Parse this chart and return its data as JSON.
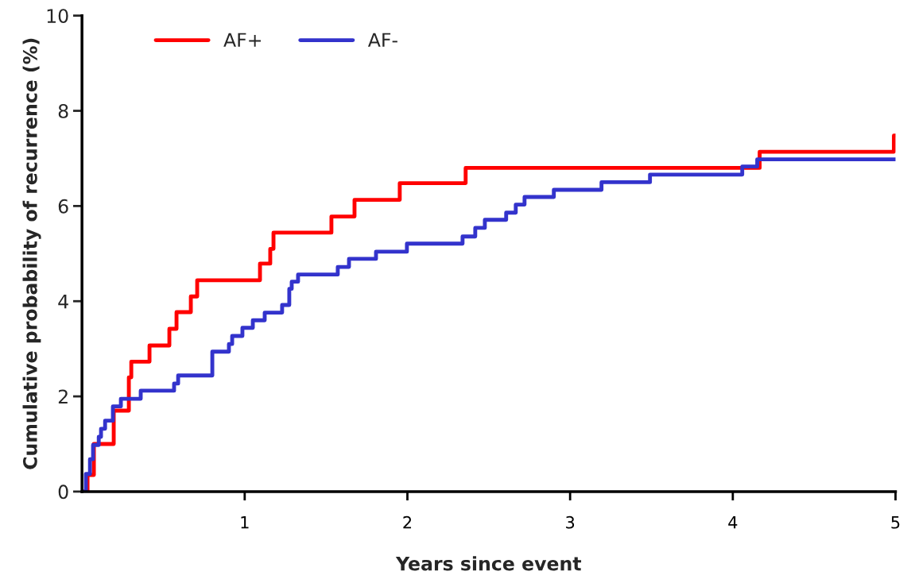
{
  "chart_data": {
    "type": "step",
    "xlabel": "Years since event",
    "ylabel": "Cumulative probability of recurrence (%)",
    "series": [
      {
        "name": "AF+",
        "color": "#ff0000",
        "x": [
          0,
          0.034,
          0.073,
          0.195,
          0.288,
          0.303,
          0.415,
          0.537,
          0.581,
          0.669,
          0.708,
          1.094,
          1.157,
          1.177,
          1.533,
          1.675,
          1.953,
          2.358,
          4.165,
          4.99,
          5.0
        ],
        "values": [
          0,
          0.35,
          1.0,
          1.7,
          2.4,
          2.73,
          3.07,
          3.42,
          3.77,
          4.1,
          4.44,
          4.79,
          5.1,
          5.44,
          5.78,
          6.13,
          6.48,
          6.8,
          7.14,
          7.48,
          7.48
        ]
      },
      {
        "name": "AF-",
        "color": "#3333cc",
        "x": [
          0,
          0.024,
          0.049,
          0.068,
          0.103,
          0.117,
          0.142,
          0.19,
          0.239,
          0.361,
          0.566,
          0.591,
          0.801,
          0.903,
          0.923,
          0.986,
          1.05,
          1.123,
          1.23,
          1.274,
          1.289,
          1.328,
          1.572,
          1.641,
          1.807,
          1.997,
          2.339,
          2.417,
          2.476,
          2.607,
          2.666,
          2.72,
          2.9,
          3.193,
          3.491,
          4.058,
          4.15,
          5.0
        ],
        "values": [
          0,
          0.37,
          0.68,
          0.98,
          1.15,
          1.32,
          1.49,
          1.79,
          1.95,
          2.12,
          2.27,
          2.44,
          2.94,
          3.1,
          3.27,
          3.44,
          3.6,
          3.76,
          3.92,
          4.26,
          4.41,
          4.56,
          4.72,
          4.89,
          5.04,
          5.21,
          5.36,
          5.54,
          5.71,
          5.86,
          6.03,
          6.19,
          6.34,
          6.5,
          6.66,
          6.83,
          6.98,
          6.98
        ]
      }
    ],
    "xlim": [
      0,
      5
    ],
    "xticks": [
      1,
      2,
      3,
      4,
      5
    ],
    "ylim": [
      0,
      10
    ],
    "yticks": [
      0,
      2,
      4,
      6,
      8,
      10
    ],
    "grid": false,
    "legend": "top left",
    "line_style": "solid"
  }
}
